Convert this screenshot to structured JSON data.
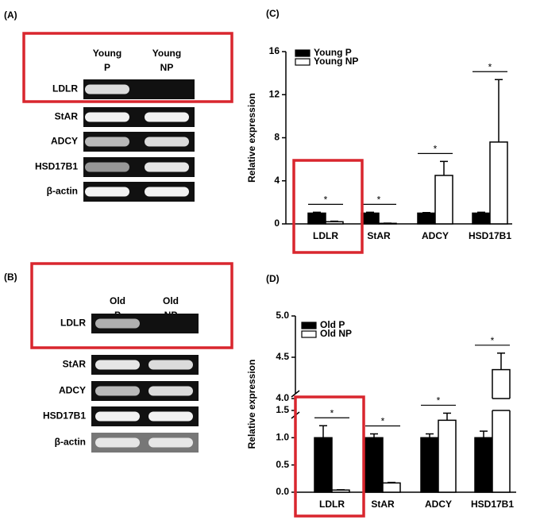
{
  "panels": [
    {
      "label": "(A)",
      "columns": [
        [
          "Young",
          "P"
        ],
        [
          "Young",
          "NP"
        ]
      ],
      "rows": [
        "LDLR",
        "StAR",
        "ADCY",
        "HSD17B1",
        "β-actin"
      ]
    },
    {
      "label": "(B)",
      "columns": [
        [
          "Old",
          "P"
        ],
        [
          "Old",
          "NP"
        ]
      ],
      "rows": [
        "LDLR",
        "StAR",
        "ADCY",
        "HSD17B1",
        "β-actin"
      ]
    }
  ],
  "chart_data": [
    {
      "type": "bar",
      "label": "(C)",
      "ylabel": "Relative expression",
      "categories": [
        "LDLR",
        "StAR",
        "ADCY",
        "HSD17B1"
      ],
      "series": [
        {
          "name": "Young P",
          "color": "#000000",
          "values": [
            1,
            1,
            1,
            1
          ],
          "errors": [
            0.08,
            0.08,
            0.05,
            0.08
          ]
        },
        {
          "name": "Young NP",
          "color": "#ffffff",
          "values": [
            0.2,
            0.05,
            4.5,
            7.6
          ],
          "errors": [
            0.05,
            0.02,
            1.3,
            5.8
          ]
        }
      ],
      "ylim": [
        0,
        16
      ],
      "yticks": [
        0,
        4,
        8,
        12,
        16
      ],
      "significance": [
        "*",
        "*",
        "*",
        "*"
      ],
      "legend": "upper left"
    },
    {
      "type": "bar",
      "label": "(D)",
      "ylabel": "Relative expression",
      "categories": [
        "LDLR",
        "StAR",
        "ADCY",
        "HSD17B1"
      ],
      "series": [
        {
          "name": "Old P",
          "color": "#000000",
          "values": [
            1,
            1,
            1,
            1
          ],
          "errors": [
            0.22,
            0.07,
            0.07,
            0.12
          ]
        },
        {
          "name": "Old NP",
          "color": "#ffffff",
          "values": [
            0.04,
            0.17,
            1.32,
            4.35
          ],
          "errors": [
            0.005,
            0.01,
            0.13,
            0.2
          ]
        }
      ],
      "ylim": [
        0,
        5
      ],
      "axis_break": [
        1.5,
        4
      ],
      "yticks": [
        {
          "value": 0,
          "label": "0.0"
        },
        0.5,
        {
          "value": 1,
          "label": "1.0"
        },
        1.5,
        {
          "value": 4,
          "label": "4.0"
        },
        4.5,
        {
          "value": 5,
          "label": "5.0"
        }
      ],
      "significance": [
        "*",
        "*",
        "*",
        "*"
      ],
      "legend": "upper left"
    }
  ]
}
